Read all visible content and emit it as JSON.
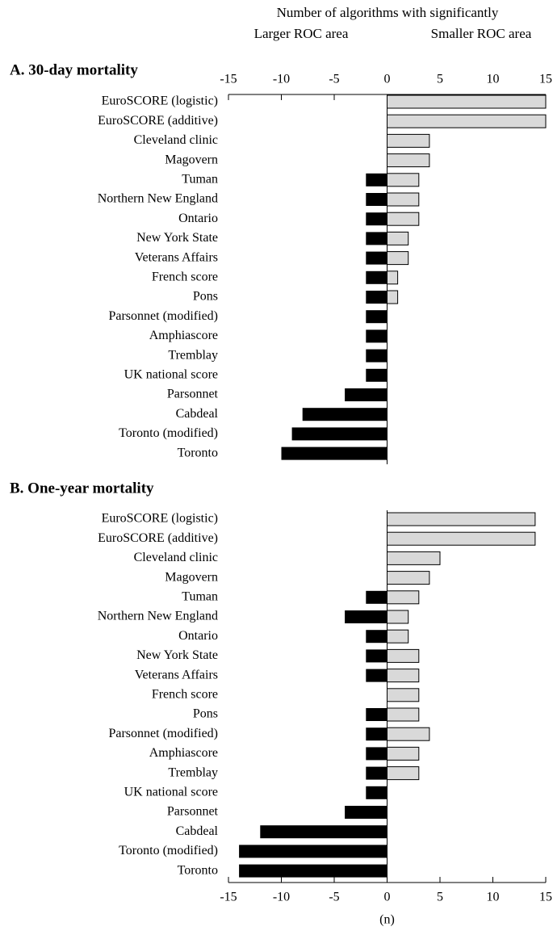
{
  "chart_data": [
    {
      "type": "bar",
      "orientation": "horizontal",
      "title": "A. 30-day mortality",
      "axis_title": "Number of algorithms with significantly",
      "xaxis_position": "top",
      "categories": [
        "EuroSCORE (logistic)",
        "EuroSCORE (additive)",
        "Cleveland clinic",
        "Magovern",
        "Tuman",
        "Northern New England",
        "Ontario",
        "New York State",
        "Veterans Affairs",
        "French score",
        "Pons",
        "Parsonnet (modified)",
        "Amphiascore",
        "Tremblay",
        "UK national score",
        "Parsonnet",
        "Cabdeal",
        "Toronto (modified)",
        "Toronto"
      ],
      "series": [
        {
          "name": "Larger ROC area",
          "color": "#000000",
          "values": [
            0,
            0,
            0,
            0,
            -2,
            -2,
            -2,
            -2,
            -2,
            -2,
            -2,
            -2,
            -2,
            -2,
            -2,
            -4,
            -8,
            -9,
            -10
          ]
        },
        {
          "name": "Smaller ROC area",
          "color": "#d9d9d9",
          "values": [
            15,
            15,
            4,
            4,
            3,
            3,
            3,
            2,
            2,
            1,
            1,
            0,
            0,
            0,
            0,
            0,
            0,
            0,
            0
          ]
        }
      ],
      "xlim": [
        -15,
        15
      ],
      "xticks": [
        -15,
        -10,
        -5,
        0,
        5,
        10,
        15
      ]
    },
    {
      "type": "bar",
      "orientation": "horizontal",
      "title": "B. One-year mortality",
      "xlabel": "(n)",
      "xaxis_position": "bottom",
      "categories": [
        "EuroSCORE (logistic)",
        "EuroSCORE (additive)",
        "Cleveland clinic",
        "Magovern",
        "Tuman",
        "Northern New England",
        "Ontario",
        "New York State",
        "Veterans Affairs",
        "French score",
        "Pons",
        "Parsonnet (modified)",
        "Amphiascore",
        "Tremblay",
        "UK national score",
        "Parsonnet",
        "Cabdeal",
        "Toronto (modified)",
        "Toronto"
      ],
      "series": [
        {
          "color": "#000000",
          "values": [
            0,
            0,
            0,
            0,
            -2,
            -4,
            -2,
            -2,
            -2,
            0,
            -2,
            -2,
            -2,
            -2,
            -2,
            -4,
            -12,
            -14,
            -14
          ]
        },
        {
          "color": "#d9d9d9",
          "values": [
            14,
            14,
            5,
            4,
            3,
            2,
            2,
            3,
            3,
            3,
            3,
            4,
            3,
            3,
            0,
            0,
            0,
            0,
            0
          ]
        }
      ],
      "xlim": [
        -15,
        15
      ],
      "xticks": [
        -15,
        -10,
        -5,
        0,
        5,
        10,
        15
      ]
    }
  ]
}
